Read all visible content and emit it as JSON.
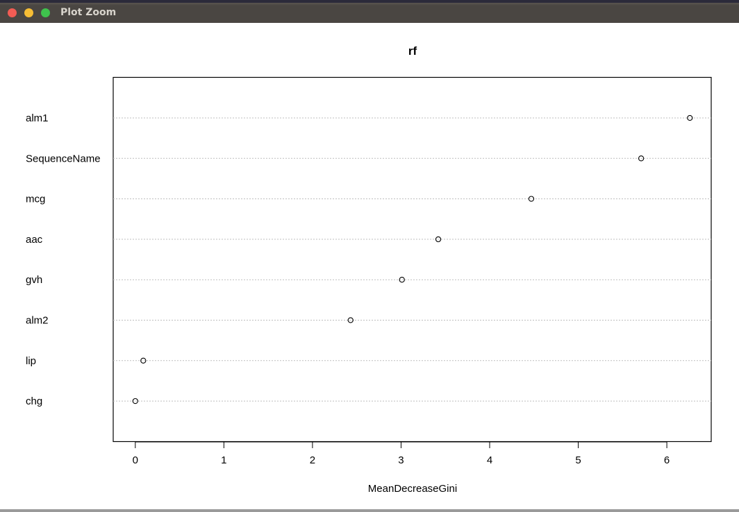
{
  "window": {
    "title": "Plot Zoom",
    "controls": [
      "close",
      "minimize",
      "maximize"
    ],
    "control_colors": {
      "close": "#f25c54",
      "minimize": "#f6bd35",
      "maximize": "#3fc24d"
    }
  },
  "chart_data": {
    "type": "scatter",
    "subtype": "dotchart",
    "title": "rf",
    "xlabel": "MeanDecreaseGini",
    "ylabel": "",
    "categories": [
      "alm1",
      "SequenceName",
      "mcg",
      "aac",
      "gvh",
      "alm2",
      "lip",
      "chg"
    ],
    "values": [
      6.26,
      5.71,
      4.47,
      3.42,
      3.01,
      2.43,
      0.09,
      0.0
    ],
    "xlim": [
      -0.25,
      6.5
    ],
    "xticks": [
      0,
      1,
      2,
      3,
      4,
      5,
      6
    ],
    "grid": "horizontal dotted",
    "legend": "none",
    "marker": "open circle"
  }
}
